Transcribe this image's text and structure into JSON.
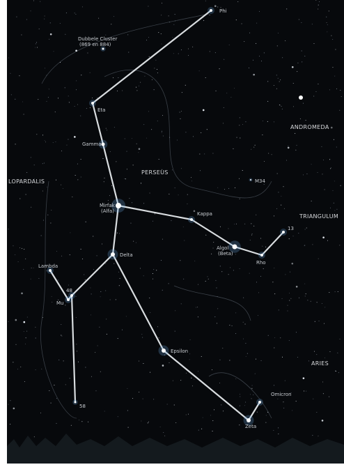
{
  "stars": [
    {
      "label": "Phi"
    },
    {
      "label": "Dubbele Cluster",
      "note": "(869 en 884)"
    },
    {
      "label": "Eta"
    },
    {
      "label": "Gamma"
    },
    {
      "label": "Mirfak",
      "note": "(Alfa)"
    },
    {
      "label": "Kappa"
    },
    {
      "label": "Algol",
      "note": "(Beta)"
    },
    {
      "label": "Rho"
    },
    {
      "label": "13"
    },
    {
      "label": "Delta"
    },
    {
      "label": "Lambda"
    },
    {
      "label": "48"
    },
    {
      "label": "Mu"
    },
    {
      "label": "58"
    },
    {
      "label": "Epsilon"
    },
    {
      "label": "Omicron"
    },
    {
      "label": "Zeta"
    },
    {
      "label": "M34"
    }
  ],
  "constellations": [
    "ANDROMEDA",
    "PERSEUS",
    "LOPARDALIS",
    "TRIANGULUM",
    "ARIES"
  ]
}
